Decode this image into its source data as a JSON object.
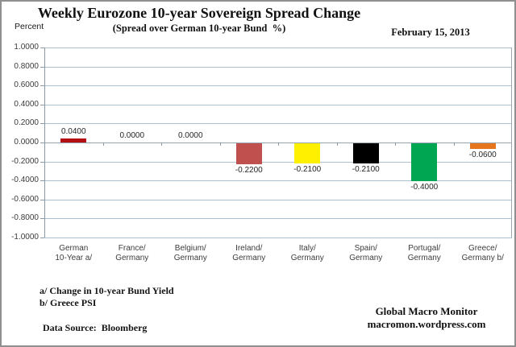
{
  "header": {
    "title": "Weekly Eurozone 10-year Sovereign Spread Change",
    "subtitle": "(Spread over German 10-year Bund  %)",
    "date": "February 15, 2013",
    "axis_unit": "Percent"
  },
  "chart_data": {
    "type": "bar",
    "title": "Weekly Eurozone 10-year Sovereign Spread Change",
    "subtitle": "(Spread over German 10-year Bund %)",
    "categories": [
      "German 10-Year a/",
      "France/ Germany",
      "Belgium/ Germany",
      "Ireland/ Germany",
      "Italy/ Germany",
      "Spain/ Germany",
      "Portugal/ Germany",
      "Greece/ Germany b/"
    ],
    "category_lines": [
      [
        "German",
        "10-Year a/"
      ],
      [
        "France/",
        "Germany"
      ],
      [
        "Belgium/",
        "Germany"
      ],
      [
        "Ireland/",
        "Germany"
      ],
      [
        "Italy/",
        "Germany"
      ],
      [
        "Spain/",
        "Germany"
      ],
      [
        "Portugal/",
        "Germany"
      ],
      [
        "Greece/",
        "Germany b/"
      ]
    ],
    "values": [
      0.04,
      0.0,
      0.0,
      -0.22,
      -0.21,
      -0.21,
      -0.4,
      -0.06
    ],
    "value_labels": [
      "0.0400",
      "0.0000",
      "0.0000",
      "-0.2200",
      "-0.2100",
      "-0.2100",
      "-0.4000",
      "-0.0600"
    ],
    "bar_colors": [
      "#b30f12",
      null,
      null,
      "#c0504d",
      "#fff000",
      "#000000",
      "#00a651",
      "#e5761e"
    ],
    "ylabel": "Percent",
    "ylim": [
      -1.0,
      1.0
    ],
    "ytick_step": 0.2,
    "ytick_decimals": 4,
    "grid": true,
    "legend": false
  },
  "footnotes": {
    "notes": "a/ Change in 10-year Bund Yield\nb/ Greece PSI",
    "source": "Data Source:  Bloomberg"
  },
  "branding": {
    "line1": "Global Macro Monitor",
    "line2": "macromon.wordpress.com"
  },
  "colors": {
    "grid": "#abc1d2",
    "axis": "#8c9aa6",
    "positive_bar": "#b30f12"
  }
}
